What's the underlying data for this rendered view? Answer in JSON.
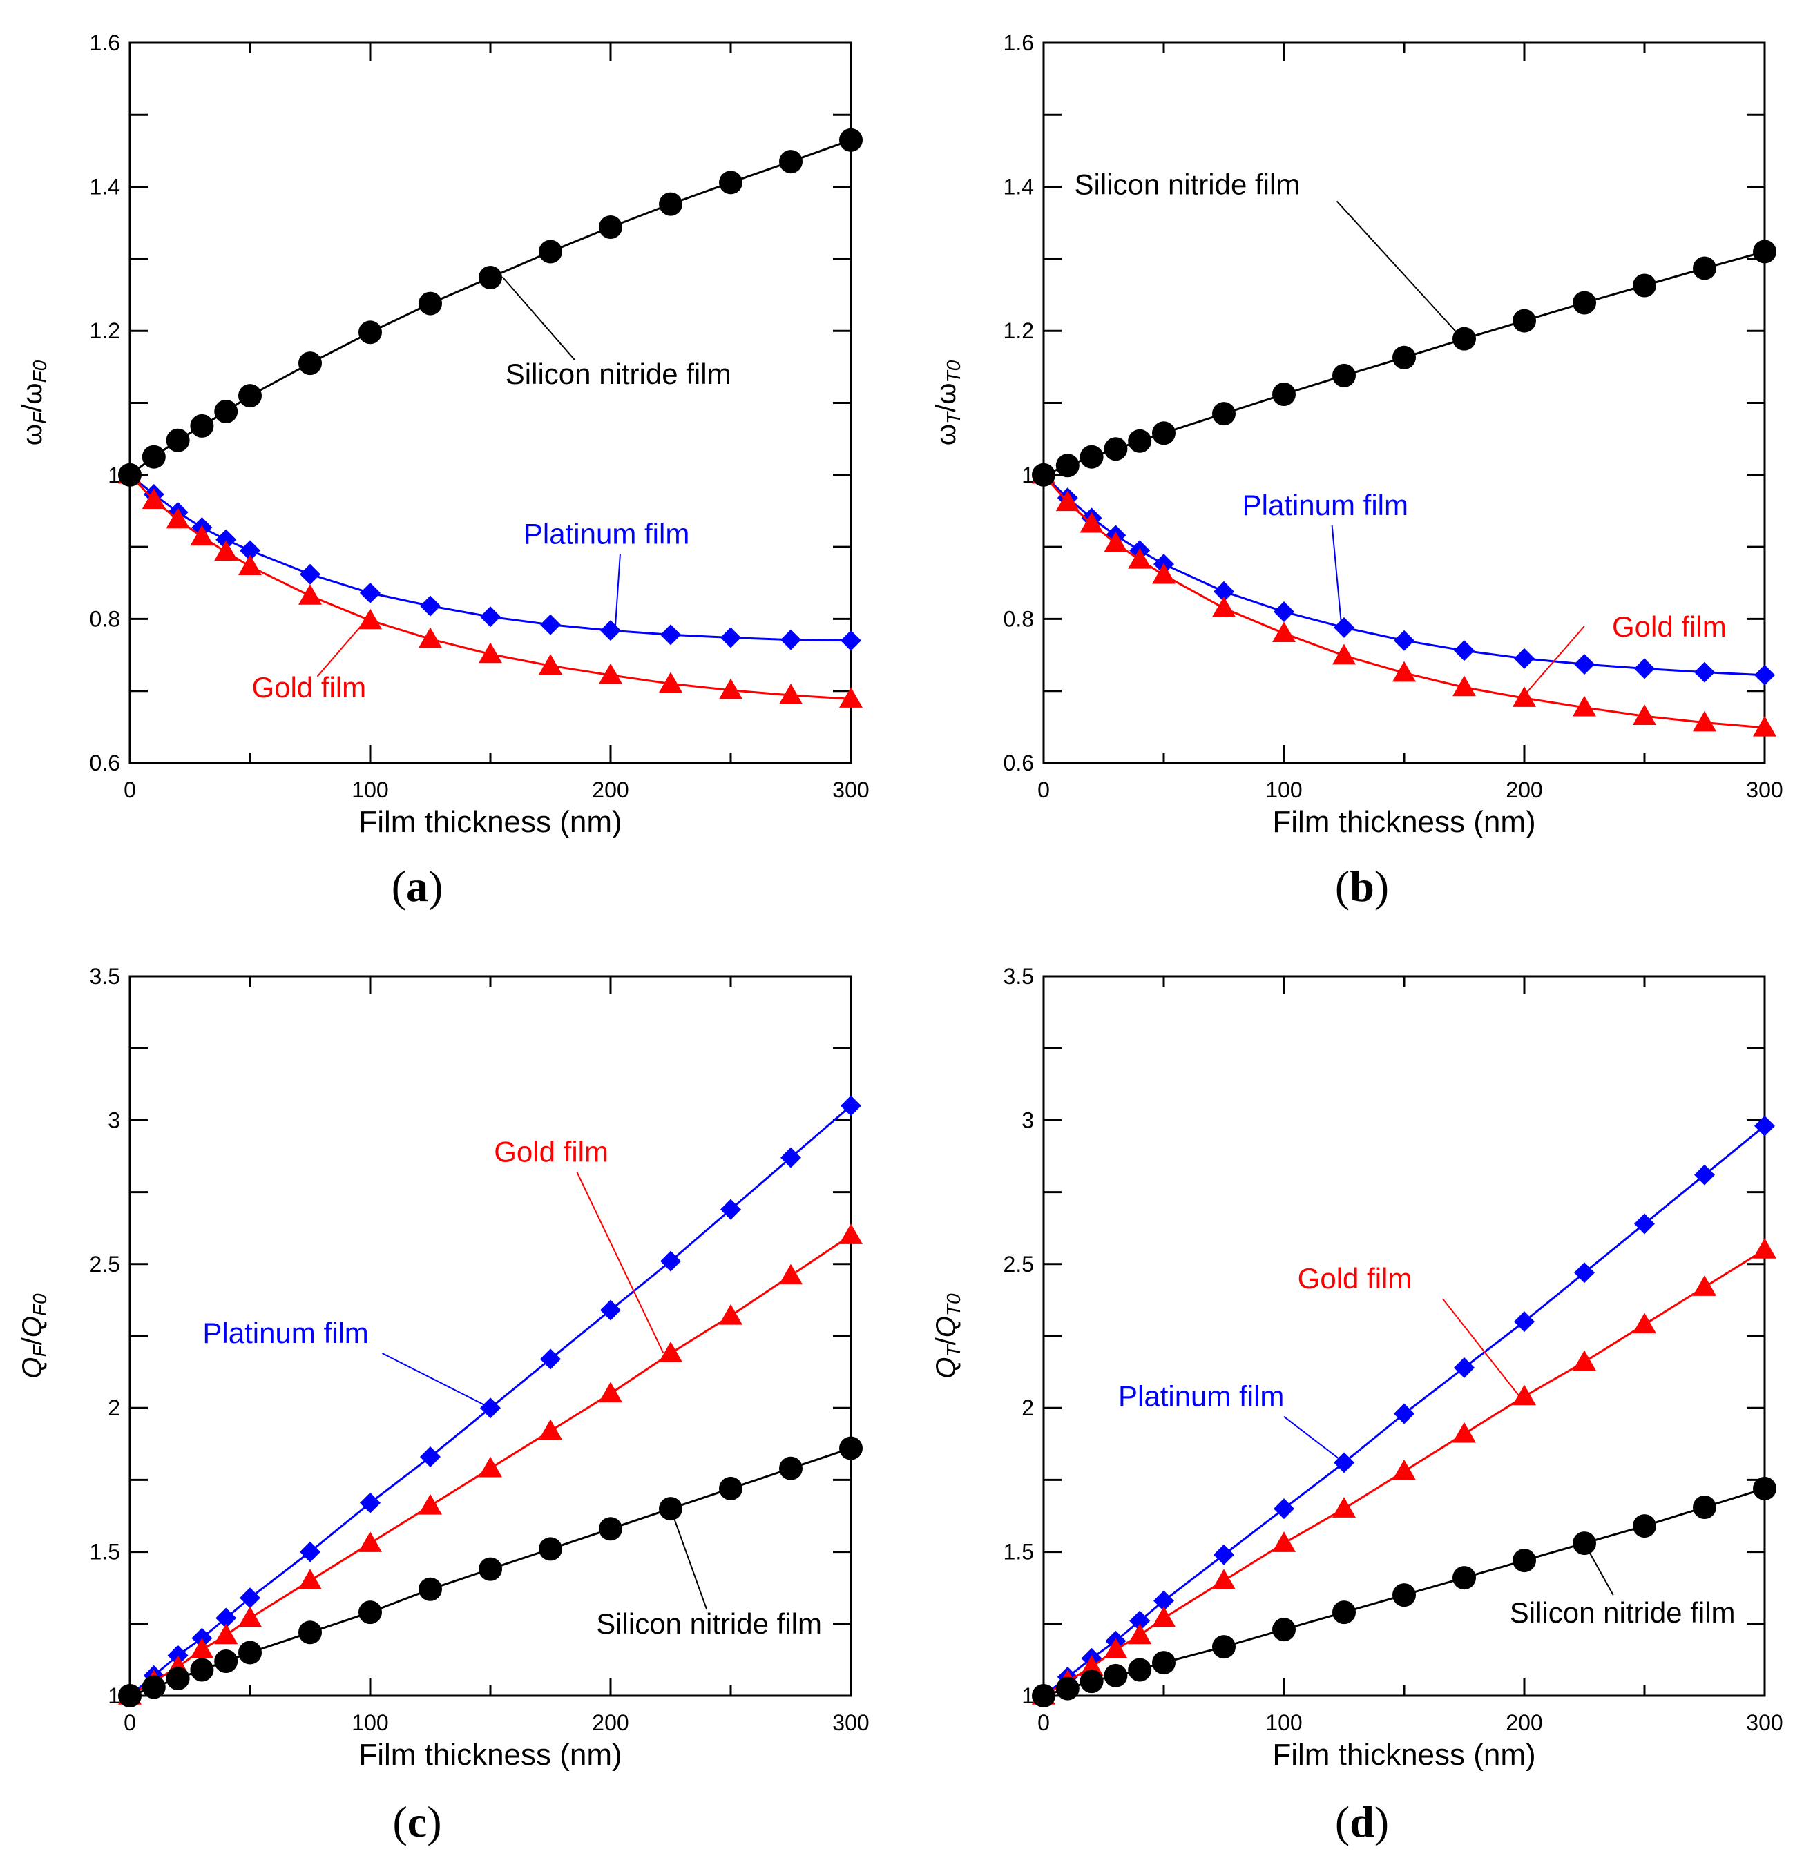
{
  "figure": {
    "colors": {
      "silicon_nitride": "#000000",
      "platinum": "#0000ff",
      "gold": "#ff0000",
      "axes": "#000000"
    },
    "icons": {
      "silicon_nitride": "circle-marker",
      "platinum": "diamond-marker",
      "gold": "triangle-marker"
    }
  },
  "chart_data": [
    {
      "panel": "a",
      "caption_open": "(",
      "caption_letter": "a",
      "caption_close": ")",
      "type": "line",
      "xlabel": "Film thickness (nm)",
      "ylabel": {
        "symbol_num": "ω",
        "sub_num": "F",
        "slash": "/",
        "symbol_den": "ω",
        "sub_den": "F0"
      },
      "xlim": [
        0,
        300
      ],
      "ylim": [
        0.6,
        1.6
      ],
      "xticks": [
        0,
        100,
        200,
        300
      ],
      "yticks": [
        0.6,
        0.8,
        1,
        1.2,
        1.4,
        1.6
      ],
      "ytick_labels": [
        "0.6",
        "0.8",
        "1",
        "1.2",
        "1.4",
        "1.6"
      ],
      "x": [
        0,
        10,
        20,
        30,
        40,
        50,
        75,
        100,
        125,
        150,
        175,
        200,
        225,
        250,
        275,
        300
      ],
      "series": [
        {
          "name": "Silicon nitride film",
          "key": "silicon_nitride",
          "values": [
            1.0,
            1.025,
            1.048,
            1.068,
            1.088,
            1.11,
            1.155,
            1.198,
            1.238,
            1.274,
            1.31,
            1.344,
            1.376,
            1.406,
            1.435,
            1.465
          ]
        },
        {
          "name": "Platinum film",
          "key": "platinum",
          "values": [
            1.0,
            0.973,
            0.948,
            0.927,
            0.91,
            0.895,
            0.862,
            0.836,
            0.818,
            0.803,
            0.792,
            0.784,
            0.778,
            0.774,
            0.771,
            0.77
          ]
        },
        {
          "name": "Gold film",
          "key": "gold",
          "values": [
            1.0,
            0.965,
            0.938,
            0.914,
            0.893,
            0.873,
            0.832,
            0.798,
            0.772,
            0.751,
            0.735,
            0.722,
            0.71,
            0.701,
            0.694,
            0.689
          ]
        }
      ],
      "annotations": [
        {
          "series": "silicon_nitride",
          "text": "Silicon nitride film",
          "tx": 155,
          "ty": 1.275,
          "lx": 185,
          "ly": 1.16
        },
        {
          "series": "platinum",
          "text": "Platinum film",
          "tx": 202,
          "ty": 0.79,
          "lx": 204,
          "ly": 0.89
        },
        {
          "series": "gold",
          "text": "Gold film",
          "tx": 100,
          "ty": 0.805,
          "lx": 78,
          "ly": 0.72
        }
      ]
    },
    {
      "panel": "b",
      "caption_open": "(",
      "caption_letter": "b",
      "caption_close": ")",
      "type": "line",
      "xlabel": "Film thickness (nm)",
      "ylabel": {
        "symbol_num": "ω",
        "sub_num": "T",
        "slash": "/",
        "symbol_den": "ω",
        "sub_den": "T0"
      },
      "xlim": [
        0,
        300
      ],
      "ylim": [
        0.6,
        1.6
      ],
      "xticks": [
        0,
        100,
        200,
        300
      ],
      "yticks": [
        0.6,
        0.8,
        1,
        1.2,
        1.4,
        1.6
      ],
      "ytick_labels": [
        "0.6",
        "0.8",
        "1",
        "1.2",
        "1.4",
        "1.6"
      ],
      "x": [
        0,
        10,
        20,
        30,
        40,
        50,
        75,
        100,
        125,
        150,
        175,
        200,
        225,
        250,
        275,
        300
      ],
      "series": [
        {
          "name": "Silicon nitride film",
          "key": "silicon_nitride",
          "values": [
            1.0,
            1.013,
            1.025,
            1.036,
            1.047,
            1.058,
            1.085,
            1.112,
            1.138,
            1.163,
            1.189,
            1.214,
            1.239,
            1.263,
            1.287,
            1.31
          ]
        },
        {
          "name": "Platinum film",
          "key": "platinum",
          "values": [
            1.0,
            0.968,
            0.94,
            0.916,
            0.895,
            0.876,
            0.838,
            0.81,
            0.788,
            0.77,
            0.756,
            0.745,
            0.737,
            0.731,
            0.726,
            0.722
          ]
        },
        {
          "name": "Gold film",
          "key": "gold",
          "values": [
            1.0,
            0.962,
            0.932,
            0.905,
            0.882,
            0.861,
            0.815,
            0.78,
            0.749,
            0.725,
            0.705,
            0.69,
            0.677,
            0.665,
            0.656,
            0.649
          ]
        }
      ],
      "annotations": [
        {
          "series": "silicon_nitride",
          "text": "Silicon nitride film",
          "tx": 174,
          "ty": 1.19,
          "lx": 122,
          "ly": 1.38
        },
        {
          "series": "platinum",
          "text": "Platinum film",
          "tx": 124,
          "ty": 0.788,
          "lx": 120,
          "ly": 0.93
        },
        {
          "series": "gold",
          "text": "Gold film",
          "tx": 200,
          "ty": 0.694,
          "lx": 225,
          "ly": 0.79
        }
      ]
    },
    {
      "panel": "c",
      "caption_open": "(",
      "caption_letter": "c",
      "caption_close": ")",
      "type": "line",
      "xlabel": "Film thickness (nm)",
      "ylabel": {
        "symbol_num": "Q",
        "sub_num": "F",
        "slash": "/",
        "symbol_den": "Q",
        "sub_den": "F0"
      },
      "xlim": [
        0,
        300
      ],
      "ylim": [
        1,
        3.5
      ],
      "xticks": [
        0,
        100,
        200,
        300
      ],
      "yticks": [
        1,
        1.5,
        2,
        2.5,
        3,
        3.5
      ],
      "ytick_labels": [
        "1",
        "1.5",
        "2",
        "2.5",
        "3",
        "3.5"
      ],
      "x": [
        0,
        10,
        20,
        30,
        40,
        50,
        75,
        100,
        125,
        150,
        175,
        200,
        225,
        250,
        275,
        300
      ],
      "series": [
        {
          "name": "Silicon nitride film",
          "key": "silicon_nitride",
          "values": [
            1.0,
            1.03,
            1.06,
            1.09,
            1.12,
            1.15,
            1.22,
            1.29,
            1.37,
            1.44,
            1.51,
            1.58,
            1.65,
            1.72,
            1.79,
            1.86
          ]
        },
        {
          "name": "Platinum film",
          "key": "platinum",
          "values": [
            1.0,
            1.07,
            1.14,
            1.2,
            1.27,
            1.34,
            1.5,
            1.67,
            1.83,
            2.0,
            2.17,
            2.34,
            2.51,
            2.69,
            2.87,
            3.05
          ]
        },
        {
          "name": "Gold film",
          "key": "gold",
          "values": [
            1.0,
            1.05,
            1.1,
            1.16,
            1.21,
            1.27,
            1.4,
            1.53,
            1.66,
            1.79,
            1.92,
            2.05,
            2.19,
            2.32,
            2.46,
            2.6
          ]
        }
      ],
      "annotations": [
        {
          "series": "silicon_nitride",
          "text": "Silicon nitride film",
          "tx": 225,
          "ty": 1.65,
          "lx": 240,
          "ly": 1.3
        },
        {
          "series": "platinum",
          "text": "Platinum film",
          "tx": 150,
          "ty": 2.0,
          "lx": 105,
          "ly": 2.19
        },
        {
          "series": "gold",
          "text": "Gold film",
          "tx": 222,
          "ty": 2.19,
          "lx": 186,
          "ly": 2.82
        }
      ]
    },
    {
      "panel": "d",
      "caption_open": "(",
      "caption_letter": "d",
      "caption_close": ")",
      "type": "line",
      "xlabel": "Film thickness (nm)",
      "ylabel": {
        "symbol_num": "Q",
        "sub_num": "T",
        "slash": "/",
        "symbol_den": "Q",
        "sub_den": "T0"
      },
      "xlim": [
        0,
        300
      ],
      "ylim": [
        1,
        3.5
      ],
      "xticks": [
        0,
        100,
        200,
        300
      ],
      "yticks": [
        1,
        1.5,
        2,
        2.5,
        3,
        3.5
      ],
      "ytick_labels": [
        "1",
        "1.5",
        "2",
        "2.5",
        "3",
        "3.5"
      ],
      "x": [
        0,
        10,
        20,
        30,
        40,
        50,
        75,
        100,
        125,
        150,
        175,
        200,
        225,
        250,
        275,
        300
      ],
      "series": [
        {
          "name": "Silicon nitride film",
          "key": "silicon_nitride",
          "values": [
            1.0,
            1.025,
            1.05,
            1.07,
            1.09,
            1.115,
            1.17,
            1.23,
            1.29,
            1.35,
            1.41,
            1.47,
            1.53,
            1.59,
            1.655,
            1.72
          ]
        },
        {
          "name": "Platinum film",
          "key": "platinum",
          "values": [
            1.0,
            1.065,
            1.13,
            1.19,
            1.26,
            1.33,
            1.49,
            1.65,
            1.81,
            1.98,
            2.14,
            2.3,
            2.47,
            2.64,
            2.81,
            2.98
          ]
        },
        {
          "name": "Gold film",
          "key": "gold",
          "values": [
            1.0,
            1.05,
            1.1,
            1.16,
            1.21,
            1.27,
            1.4,
            1.53,
            1.65,
            1.78,
            1.91,
            2.04,
            2.16,
            2.29,
            2.42,
            2.55
          ]
        }
      ],
      "annotations": [
        {
          "series": "silicon_nitride",
          "text": "Silicon nitride film",
          "tx": 225,
          "ty": 1.53,
          "lx": 237,
          "ly": 1.35
        },
        {
          "series": "platinum",
          "text": "Platinum film",
          "tx": 125,
          "ty": 1.81,
          "lx": 100,
          "ly": 1.97
        },
        {
          "series": "gold",
          "text": "Gold film",
          "tx": 198,
          "ty": 2.04,
          "lx": 166,
          "ly": 2.38
        }
      ]
    }
  ]
}
